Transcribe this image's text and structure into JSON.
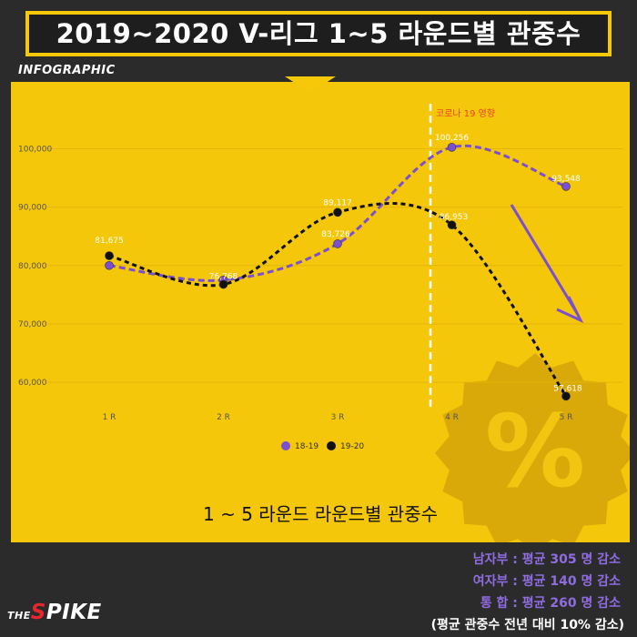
{
  "header": {
    "title": "2019~2020 V-리그 1~5 라운드별 관중수",
    "tag": "INFOGRAPHIC"
  },
  "chart_data": {
    "type": "line",
    "title": "1 ~ 5 라운드 라운드별 관중수",
    "categories": [
      "1 R",
      "2 R",
      "3 R",
      "4 R",
      "5 R"
    ],
    "y_ticks": [
      60000,
      70000,
      80000,
      90000,
      100000
    ],
    "y_tick_labels": [
      "60,000",
      "70,000",
      "80,000",
      "90,000",
      "100,000"
    ],
    "ylim": [
      53000,
      106000
    ],
    "series": [
      {
        "name": "18-19",
        "color": "#7b4fd0",
        "values": [
          80000,
          77500,
          83726,
          100256,
          93548
        ],
        "labels": [
          "",
          "",
          "83,726",
          "100,256",
          "93,548"
        ]
      },
      {
        "name": "19-20",
        "color": "#111111",
        "values": [
          81675,
          76768,
          89117,
          86953,
          57618
        ],
        "labels": [
          "81,675",
          "76,768",
          "89,117",
          "86,953",
          "57,618"
        ]
      }
    ],
    "annotation": {
      "text": "코로나 19 영향",
      "color": "#e8422a"
    },
    "legend_position": "bottom",
    "grid": true
  },
  "footer": {
    "stats": [
      "남자부 :  평균 305 명 감소",
      "여자부 : 평균 140 명 감소",
      "통  합 : 평균 260 명 감소"
    ],
    "note": "(평균 관중수 전년 대비 10% 감소)",
    "logo_the": "THE",
    "logo_spike_rest": "PIKE",
    "logo_spike_s": "S"
  },
  "colors": {
    "background": "#2b2b2b",
    "panel": "#f4c70b",
    "accent_purple": "#7b4fd0",
    "badge": "#d9a90a"
  },
  "icons": [
    "percent-badge-icon",
    "down-arrow-icon"
  ]
}
